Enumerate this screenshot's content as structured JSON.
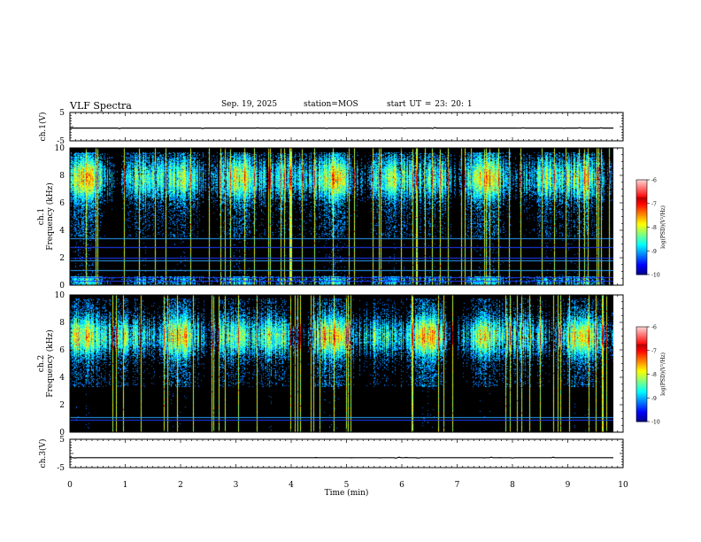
{
  "header": {
    "title": "VLF Spectra",
    "date": "Sep. 19, 2025",
    "station": "station=MOS",
    "start_ut": "start  UT  =   23: 20: 1"
  },
  "chart_data": [
    {
      "type": "line",
      "name": "ch1-waveform",
      "ylabel": "ch.1(V)",
      "ylim": [
        -5,
        5
      ],
      "yticks": [
        "5",
        "-5"
      ],
      "x": [
        0,
        9.83
      ],
      "values": [
        -0.5,
        -0.5
      ],
      "note": "flat trace with small spikes"
    },
    {
      "type": "heatmap",
      "name": "ch1-spectrogram",
      "ylabel": "ch.1 Frequency (kHz)",
      "ylim": [
        0,
        10
      ],
      "yticks": [
        "0",
        "2",
        "4",
        "6",
        "8",
        "10"
      ],
      "xlim": [
        0,
        10
      ],
      "data_xmax": 9.83,
      "bands_khz": [
        0.3,
        0.6,
        1.1,
        1.8,
        2.0,
        2.8,
        3.4
      ],
      "colorbar": {
        "label": "log(PSD)(V²/Hz)",
        "range": [
          -10,
          -6
        ],
        "ticks": [
          "-6",
          "-7",
          "-8",
          "-9",
          "-10"
        ]
      }
    },
    {
      "type": "heatmap",
      "name": "ch2-spectrogram",
      "ylabel": "ch.2 Frequency (kHz)",
      "ylim": [
        0,
        10
      ],
      "yticks": [
        "0",
        "2",
        "4",
        "6",
        "8",
        "10"
      ],
      "xlim": [
        0,
        10
      ],
      "data_xmax": 9.83,
      "bands_khz": [
        0.9,
        1.1
      ],
      "colorbar": {
        "label": "log(PSD)(V²/Hz)",
        "range": [
          -10,
          -6
        ],
        "ticks": [
          "-6",
          "-7",
          "-8",
          "-9",
          "-10"
        ]
      }
    },
    {
      "type": "line",
      "name": "ch3-waveform",
      "ylabel": "ch.3(V)",
      "ylim": [
        -5,
        5
      ],
      "yticks": [
        "5",
        "-5"
      ],
      "x": [
        0,
        9.83
      ],
      "values": [
        -1.5,
        -1.5
      ],
      "note": "flat trace with small spikes"
    }
  ],
  "xaxis": {
    "label": "Time  (min)",
    "ticks": [
      "0",
      "1",
      "2",
      "3",
      "4",
      "5",
      "6",
      "7",
      "8",
      "9",
      "10"
    ],
    "xlim": [
      0,
      10
    ]
  },
  "colors": {
    "background": "#000000",
    "frame": "#000000",
    "page": "#ffffff"
  }
}
